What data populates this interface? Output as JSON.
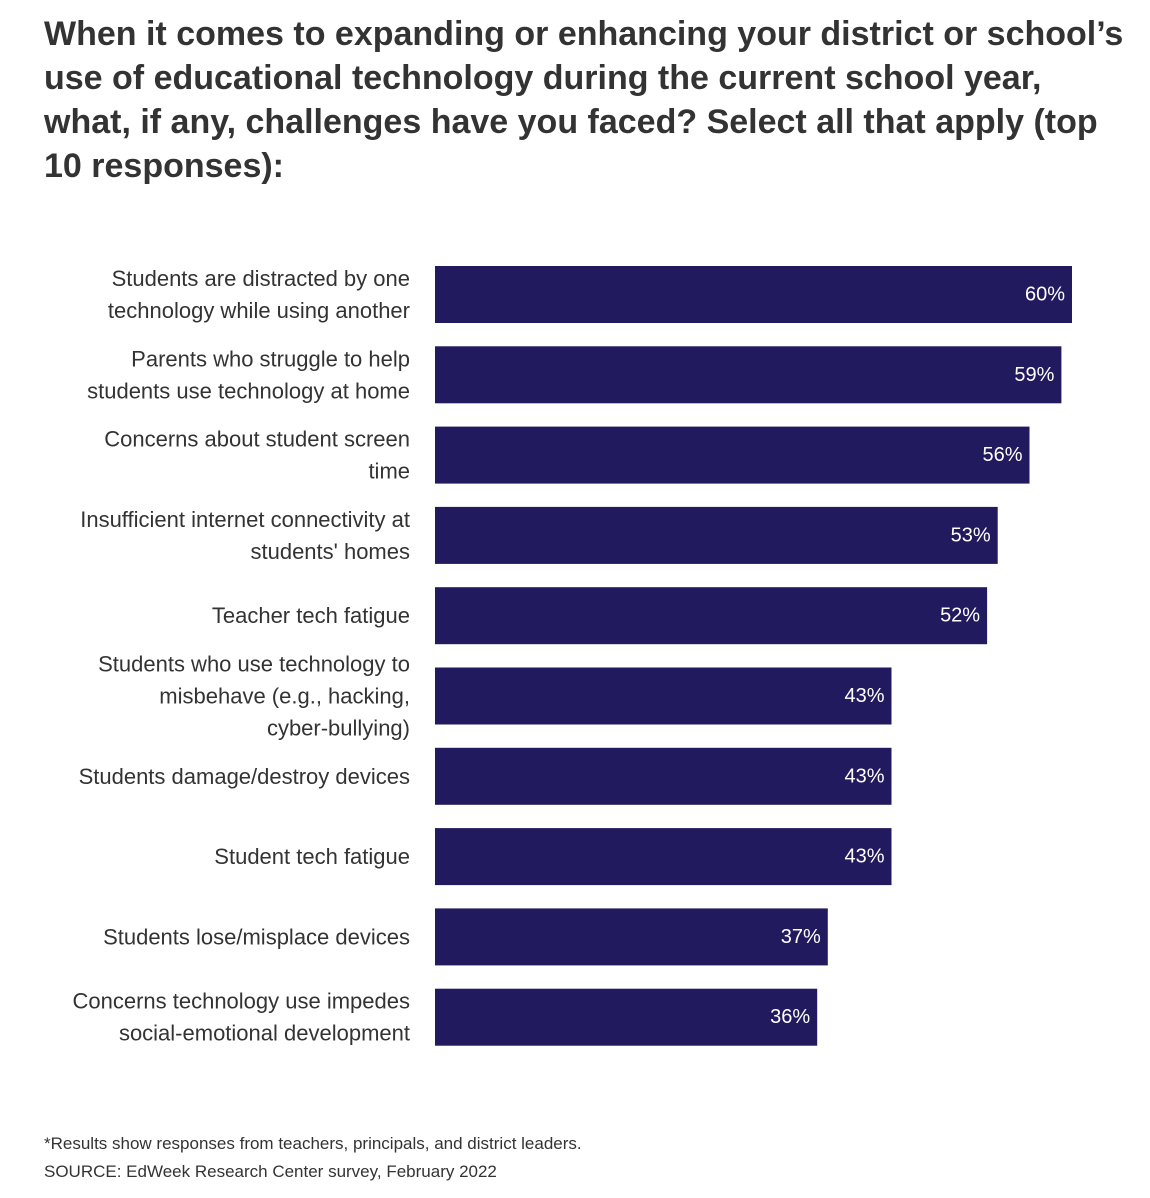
{
  "chart_data": {
    "type": "bar",
    "orientation": "horizontal",
    "title": "When it comes to expanding or enhancing your district or school’s use of educational technology during the current school year, what, if any, challenges have you faced? Select all that apply (top 10 responses):",
    "categories": [
      [
        "Students are distracted by one",
        "technology while using another"
      ],
      [
        "Parents who struggle to help",
        "students use technology at home"
      ],
      [
        "Concerns about student screen",
        "time"
      ],
      [
        "Insufficient internet connectivity at",
        "students' homes"
      ],
      [
        "Teacher tech fatigue"
      ],
      [
        "Students who use technology to",
        "misbehave (e.g., hacking,",
        "cyber-bullying)"
      ],
      [
        "Students damage/destroy devices"
      ],
      [
        "Student tech fatigue"
      ],
      [
        "Students lose/misplace devices"
      ],
      [
        "Concerns technology use impedes",
        "social-emotional development"
      ]
    ],
    "values": [
      60,
      59,
      56,
      53,
      52,
      43,
      43,
      43,
      37,
      36
    ],
    "value_labels": [
      "60%",
      "59%",
      "56%",
      "53%",
      "52%",
      "43%",
      "43%",
      "43%",
      "37%",
      "36%"
    ],
    "xlim": [
      0,
      60
    ],
    "grid": false,
    "bar_color": "#221a5e",
    "value_label_color": "#ffffff"
  },
  "footer": {
    "footnote": "*Results show responses from teachers, principals, and district leaders.",
    "source": "SOURCE: EdWeek Research Center survey, February 2022"
  }
}
